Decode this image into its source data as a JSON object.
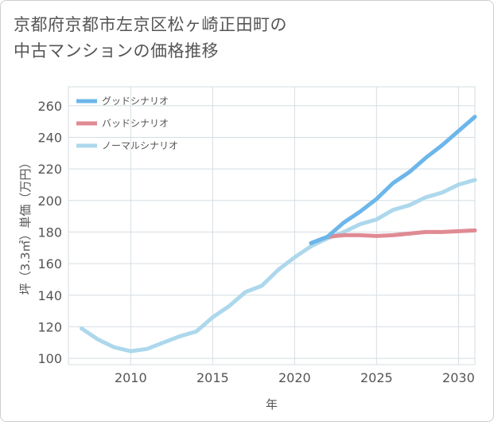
{
  "title_lines": [
    "京都府京都市左京区松ヶ崎正田町の",
    "中古マンションの価格推移"
  ],
  "chart_data": {
    "type": "line",
    "title": "京都府京都市左京区松ヶ崎正田町の中古マンションの価格推移",
    "xlabel": "年",
    "ylabel": "坪（3.3㎡）単価（万円）",
    "xlim": [
      2006.2,
      2031
    ],
    "ylim": [
      96,
      272
    ],
    "x_ticks": [
      2010,
      2015,
      2020,
      2025,
      2030
    ],
    "y_ticks": [
      100,
      120,
      140,
      160,
      180,
      200,
      220,
      240,
      260
    ],
    "grid": true,
    "legend_position": "top-left",
    "series": [
      {
        "name": "グッドシナリオ",
        "color": "#6cb6ea",
        "x": [
          2021,
          2022,
          2023,
          2024,
          2025,
          2026,
          2027,
          2028,
          2029,
          2030,
          2031
        ],
        "y": [
          173,
          177,
          186,
          193,
          201,
          211,
          218,
          227,
          235,
          244,
          253
        ]
      },
      {
        "name": "バッドシナリオ",
        "color": "#e08a94",
        "x": [
          2021,
          2022,
          2023,
          2024,
          2025,
          2026,
          2027,
          2028,
          2029,
          2030,
          2031
        ],
        "y": [
          173,
          177,
          178,
          178,
          177.5,
          178,
          179,
          180,
          180,
          180.5,
          181
        ]
      },
      {
        "name": "ノーマルシナリオ",
        "color": "#add8ec",
        "x": [
          2007,
          2008,
          2009,
          2010,
          2011,
          2012,
          2013,
          2014,
          2015,
          2016,
          2017,
          2018,
          2019,
          2020,
          2021,
          2022,
          2023,
          2024,
          2025,
          2026,
          2027,
          2028,
          2029,
          2030,
          2031
        ],
        "y": [
          119,
          112,
          107,
          104.5,
          106,
          110,
          114,
          117,
          126,
          133,
          142,
          146,
          156,
          164,
          171,
          176,
          180,
          185,
          188,
          194,
          197,
          202,
          205,
          210,
          213
        ]
      }
    ]
  }
}
